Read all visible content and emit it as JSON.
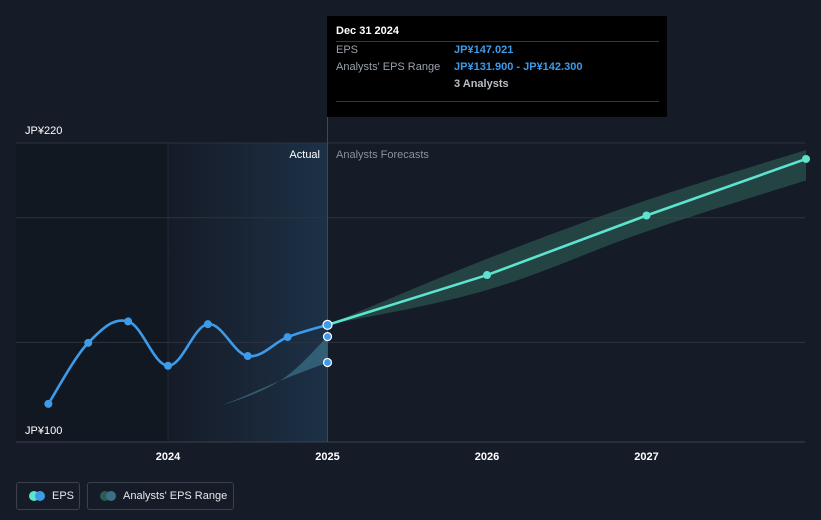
{
  "chart_data": {
    "type": "line",
    "ylabel": "",
    "y_tick_labels": [
      "JP¥220",
      "JP¥100"
    ],
    "ylim": [
      100,
      220
    ],
    "x_tick_labels": [
      "2024",
      "2025",
      "2026",
      "2027"
    ],
    "region_labels": {
      "actual": "Actual",
      "forecast": "Analysts Forecasts"
    },
    "series": [
      {
        "name": "EPS",
        "color": "#3d9be9",
        "points": [
          {
            "x": 2023.25,
            "y": 115.3
          },
          {
            "x": 2023.5,
            "y": 139.8
          },
          {
            "x": 2023.75,
            "y": 148.4
          },
          {
            "x": 2024.0,
            "y": 130.6
          },
          {
            "x": 2024.25,
            "y": 147.3
          },
          {
            "x": 2024.5,
            "y": 134.5
          },
          {
            "x": 2024.75,
            "y": 142.1
          },
          {
            "x": 2025.0,
            "y": 147.0
          }
        ]
      },
      {
        "name": "EPS forecast",
        "color": "#5ee3cf",
        "points": [
          {
            "x": 2025.0,
            "y": 147.0
          },
          {
            "x": 2026.0,
            "y": 167.0
          },
          {
            "x": 2027.0,
            "y": 190.9
          },
          {
            "x": 2028.0,
            "y": 213.6
          }
        ]
      }
    ],
    "range_bands": [
      {
        "name": "Analysts' EPS Range",
        "color": "#3b6f86",
        "points": [
          {
            "x": 2023.25,
            "low": 115.3,
            "high": 115.3
          },
          {
            "x": 2023.6,
            "low": 111.6,
            "high": 111.6
          },
          {
            "x": 2024.0,
            "low": 110.6,
            "high": 110.6
          },
          {
            "x": 2024.3,
            "low": 114.0,
            "high": 114.0
          },
          {
            "x": 2024.7,
            "low": 124.5,
            "high": 124.5
          },
          {
            "x": 2025.0,
            "low": 131.9,
            "high": 142.3
          }
        ]
      },
      {
        "name": "Forecast range",
        "color": "#2c5a55",
        "points": [
          {
            "x": 2025.0,
            "low": 147.0,
            "high": 147.0
          },
          {
            "x": 2026.0,
            "low": 161.0,
            "high": 173.5
          },
          {
            "x": 2027.0,
            "low": 184.5,
            "high": 197.0
          },
          {
            "x": 2028.0,
            "low": 205.0,
            "high": 217.2
          }
        ]
      }
    ],
    "highlight_points": [
      {
        "x": 2025.0,
        "y": 142.3
      },
      {
        "x": 2025.0,
        "y": 131.9
      }
    ],
    "grid": true
  },
  "tooltip": {
    "title": "Dec 31 2024",
    "rows": [
      {
        "label": "EPS",
        "value": "JP¥147.021"
      },
      {
        "label": "Analysts' EPS Range",
        "value": "JP¥131.900 - JP¥142.300"
      },
      {
        "label": "",
        "value": "3 Analysts"
      }
    ]
  },
  "legend": [
    {
      "label": "EPS",
      "colors": [
        "#5ee3cf",
        "#3d9be9"
      ]
    },
    {
      "label": "Analysts' EPS Range",
      "colors": [
        "#2c5a55",
        "#3b6f86"
      ]
    }
  ]
}
